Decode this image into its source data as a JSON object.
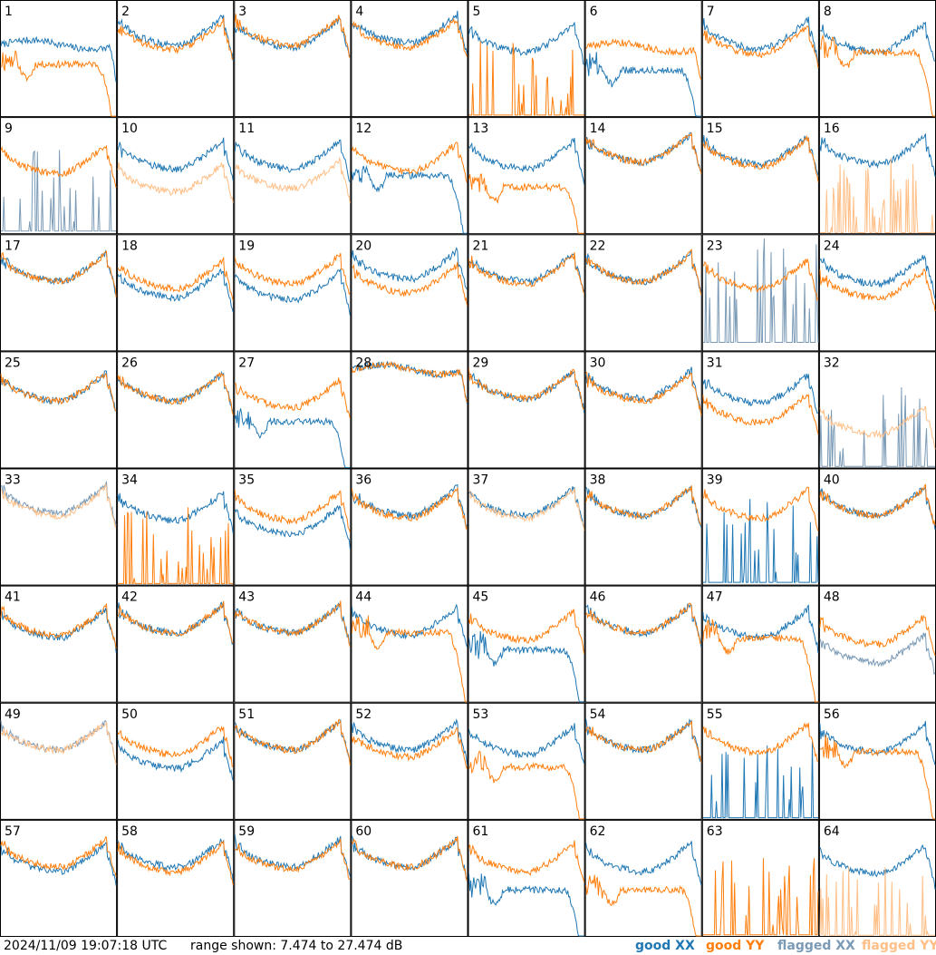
{
  "footer": {
    "timestamp": "2024/11/09 19:07:18 UTC",
    "range_label": "range shown: 7.474 to 27.474 dB"
  },
  "chart_data": {
    "type": "line",
    "layout": "small-multiples-8x8",
    "unit": "dB",
    "ylim": [
      7.474,
      27.474
    ],
    "panels": [
      {
        "label": "1",
        "xx": "good",
        "yy": "good",
        "xx_shape": "flat",
        "yy_shape": "decay",
        "xx_level": 0.62,
        "yy_level": 0.45
      },
      {
        "label": "2",
        "xx": "good",
        "yy": "good",
        "xx_shape": "bowl",
        "yy_shape": "bowl",
        "xx_level": 0.78,
        "yy_level": 0.74
      },
      {
        "label": "3",
        "xx": "good",
        "yy": "good",
        "xx_shape": "bowl",
        "yy_shape": "bowl",
        "xx_level": 0.76,
        "yy_level": 0.78
      },
      {
        "label": "4",
        "xx": "good",
        "yy": "good",
        "xx_shape": "bowl",
        "yy_shape": "bowl",
        "xx_level": 0.8,
        "yy_level": 0.76
      },
      {
        "label": "5",
        "xx": "good",
        "yy": "good",
        "xx_shape": "bowl",
        "yy_shape": "spikes",
        "xx_level": 0.72,
        "yy_level": 0.05
      },
      {
        "label": "6",
        "xx": "good",
        "yy": "good",
        "xx_shape": "decay",
        "yy_shape": "flat",
        "xx_level": 0.4,
        "yy_level": 0.6
      },
      {
        "label": "7",
        "xx": "good",
        "yy": "good",
        "xx_shape": "bowl",
        "yy_shape": "bowl",
        "xx_level": 0.75,
        "yy_level": 0.7
      },
      {
        "label": "8",
        "xx": "good",
        "yy": "good",
        "xx_shape": "bowl",
        "yy_shape": "decay",
        "xx_level": 0.72,
        "yy_level": 0.55
      },
      {
        "label": "9",
        "xx": "flagged",
        "yy": "good",
        "xx_shape": "spikes",
        "yy_shape": "bowl",
        "xx_level": 0.1,
        "yy_level": 0.68
      },
      {
        "label": "10",
        "xx": "good",
        "yy": "flagged",
        "xx_shape": "bowl",
        "yy_shape": "bowl",
        "xx_level": 0.72,
        "yy_level": 0.52
      },
      {
        "label": "11",
        "xx": "good",
        "yy": "flagged",
        "xx_shape": "bowl",
        "yy_shape": "bowl",
        "xx_level": 0.72,
        "yy_level": 0.55
      },
      {
        "label": "12",
        "xx": "good",
        "yy": "good",
        "xx_shape": "decay",
        "yy_shape": "bowl",
        "xx_level": 0.5,
        "yy_level": 0.7
      },
      {
        "label": "13",
        "xx": "good",
        "yy": "good",
        "xx_shape": "bowl",
        "yy_shape": "decay",
        "xx_level": 0.72,
        "yy_level": 0.4
      },
      {
        "label": "14",
        "xx": "good",
        "yy": "good",
        "xx_shape": "bowl",
        "yy_shape": "bowl",
        "xx_level": 0.78,
        "yy_level": 0.78
      },
      {
        "label": "15",
        "xx": "good",
        "yy": "good",
        "xx_shape": "bowl",
        "yy_shape": "bowl",
        "xx_level": 0.76,
        "yy_level": 0.74
      },
      {
        "label": "16",
        "xx": "good",
        "yy": "flagged",
        "xx_shape": "bowl",
        "yy_shape": "spikes",
        "xx_level": 0.76,
        "yy_level": 0.03
      },
      {
        "label": "17",
        "xx": "good",
        "yy": "good",
        "xx_shape": "bowl",
        "yy_shape": "bowl",
        "xx_level": 0.76,
        "yy_level": 0.76
      },
      {
        "label": "18",
        "xx": "good",
        "yy": "good",
        "xx_shape": "bowl",
        "yy_shape": "bowl",
        "xx_level": 0.62,
        "yy_level": 0.7
      },
      {
        "label": "19",
        "xx": "good",
        "yy": "good",
        "xx_shape": "bowl",
        "yy_shape": "bowl",
        "xx_level": 0.6,
        "yy_level": 0.74
      },
      {
        "label": "20",
        "xx": "good",
        "yy": "good",
        "xx_shape": "bowl",
        "yy_shape": "bowl",
        "xx_level": 0.78,
        "yy_level": 0.66
      },
      {
        "label": "21",
        "xx": "good",
        "yy": "good",
        "xx_shape": "bowl",
        "yy_shape": "bowl",
        "xx_level": 0.76,
        "yy_level": 0.74
      },
      {
        "label": "22",
        "xx": "good",
        "yy": "good",
        "xx_shape": "bowl",
        "yy_shape": "bowl",
        "xx_level": 0.76,
        "yy_level": 0.76
      },
      {
        "label": "23",
        "xx": "flagged",
        "yy": "good",
        "xx_shape": "spikes",
        "yy_shape": "bowl",
        "xx_level": 0.35,
        "yy_level": 0.7
      },
      {
        "label": "24",
        "xx": "good",
        "yy": "good",
        "xx_shape": "bowl",
        "yy_shape": "bowl",
        "xx_level": 0.74,
        "yy_level": 0.62
      },
      {
        "label": "25",
        "xx": "good",
        "yy": "good",
        "xx_shape": "bowl",
        "yy_shape": "bowl",
        "xx_level": 0.74,
        "yy_level": 0.74
      },
      {
        "label": "26",
        "xx": "good",
        "yy": "good",
        "xx_shape": "bowl",
        "yy_shape": "bowl",
        "xx_level": 0.74,
        "yy_level": 0.74
      },
      {
        "label": "27",
        "xx": "good",
        "yy": "good",
        "xx_shape": "decay",
        "yy_shape": "bowl",
        "xx_level": 0.4,
        "yy_level": 0.68
      },
      {
        "label": "28",
        "xx": "good",
        "yy": "good",
        "xx_shape": "flat",
        "yy_shape": "flat",
        "xx_level": 0.85,
        "yy_level": 0.85
      },
      {
        "label": "29",
        "xx": "good",
        "yy": "good",
        "xx_shape": "bowl",
        "yy_shape": "bowl",
        "xx_level": 0.76,
        "yy_level": 0.76
      },
      {
        "label": "30",
        "xx": "good",
        "yy": "good",
        "xx_shape": "bowl",
        "yy_shape": "bowl",
        "xx_level": 0.76,
        "yy_level": 0.74
      },
      {
        "label": "31",
        "xx": "good",
        "yy": "good",
        "xx_shape": "bowl",
        "yy_shape": "bowl",
        "xx_level": 0.72,
        "yy_level": 0.55
      },
      {
        "label": "32",
        "xx": "flagged",
        "yy": "flagged",
        "xx_shape": "spikes",
        "yy_shape": "bowl",
        "xx_level": 0.05,
        "yy_level": 0.45
      },
      {
        "label": "33",
        "xx": "flagged",
        "yy": "flagged",
        "xx_shape": "bowl",
        "yy_shape": "bowl",
        "xx_level": 0.78,
        "yy_level": 0.76
      },
      {
        "label": "34",
        "xx": "good",
        "yy": "good",
        "xx_shape": "bowl",
        "yy_shape": "spikes",
        "xx_level": 0.72,
        "yy_level": 0.05
      },
      {
        "label": "35",
        "xx": "good",
        "yy": "good",
        "xx_shape": "bowl",
        "yy_shape": "bowl",
        "xx_level": 0.6,
        "yy_level": 0.72
      },
      {
        "label": "36",
        "xx": "good",
        "yy": "good",
        "xx_shape": "bowl",
        "yy_shape": "bowl",
        "xx_level": 0.76,
        "yy_level": 0.74
      },
      {
        "label": "37",
        "xx": "good",
        "yy": "flagged",
        "xx_shape": "bowl",
        "yy_shape": "bowl",
        "xx_level": 0.76,
        "yy_level": 0.74
      },
      {
        "label": "38",
        "xx": "good",
        "yy": "good",
        "xx_shape": "bowl",
        "yy_shape": "bowl",
        "xx_level": 0.76,
        "yy_level": 0.76
      },
      {
        "label": "39",
        "xx": "good",
        "yy": "good",
        "xx_shape": "spikes",
        "yy_shape": "bowl",
        "xx_level": 0.1,
        "yy_level": 0.74
      },
      {
        "label": "40",
        "xx": "good",
        "yy": "good",
        "xx_shape": "bowl",
        "yy_shape": "bowl",
        "xx_level": 0.76,
        "yy_level": 0.76
      },
      {
        "label": "41",
        "xx": "good",
        "yy": "good",
        "xx_shape": "bowl",
        "yy_shape": "bowl",
        "xx_level": 0.72,
        "yy_level": 0.74
      },
      {
        "label": "42",
        "xx": "good",
        "yy": "good",
        "xx_shape": "bowl",
        "yy_shape": "bowl",
        "xx_level": 0.76,
        "yy_level": 0.76
      },
      {
        "label": "43",
        "xx": "good",
        "yy": "good",
        "xx_shape": "bowl",
        "yy_shape": "bowl",
        "xx_level": 0.76,
        "yy_level": 0.76
      },
      {
        "label": "44",
        "xx": "good",
        "yy": "good",
        "xx_shape": "bowl",
        "yy_shape": "decay",
        "xx_level": 0.74,
        "yy_level": 0.6
      },
      {
        "label": "45",
        "xx": "good",
        "yy": "good",
        "xx_shape": "decay",
        "yy_shape": "bowl",
        "xx_level": 0.45,
        "yy_level": 0.7
      },
      {
        "label": "46",
        "xx": "good",
        "yy": "good",
        "xx_shape": "bowl",
        "yy_shape": "bowl",
        "xx_level": 0.76,
        "yy_level": 0.76
      },
      {
        "label": "47",
        "xx": "good",
        "yy": "good",
        "xx_shape": "bowl",
        "yy_shape": "decay",
        "xx_level": 0.72,
        "yy_level": 0.55
      },
      {
        "label": "48",
        "xx": "flagged",
        "yy": "good",
        "xx_shape": "bowl",
        "yy_shape": "bowl",
        "xx_level": 0.5,
        "yy_level": 0.66
      },
      {
        "label": "49",
        "xx": "flagged",
        "yy": "flagged",
        "xx_shape": "bowl",
        "yy_shape": "bowl",
        "xx_level": 0.76,
        "yy_level": 0.76
      },
      {
        "label": "50",
        "xx": "good",
        "yy": "good",
        "xx_shape": "bowl",
        "yy_shape": "bowl",
        "xx_level": 0.6,
        "yy_level": 0.72
      },
      {
        "label": "51",
        "xx": "good",
        "yy": "good",
        "xx_shape": "bowl",
        "yy_shape": "bowl",
        "xx_level": 0.76,
        "yy_level": 0.76
      },
      {
        "label": "52",
        "xx": "good",
        "yy": "good",
        "xx_shape": "bowl",
        "yy_shape": "bowl",
        "xx_level": 0.76,
        "yy_level": 0.7
      },
      {
        "label": "53",
        "xx": "good",
        "yy": "good",
        "xx_shape": "bowl",
        "yy_shape": "decay",
        "xx_level": 0.72,
        "yy_level": 0.45
      },
      {
        "label": "54",
        "xx": "good",
        "yy": "good",
        "xx_shape": "bowl",
        "yy_shape": "bowl",
        "xx_level": 0.76,
        "yy_level": 0.76
      },
      {
        "label": "55",
        "xx": "good",
        "yy": "good",
        "xx_shape": "spikes",
        "yy_shape": "bowl",
        "xx_level": 0.05,
        "yy_level": 0.74
      },
      {
        "label": "56",
        "xx": "good",
        "yy": "good",
        "xx_shape": "bowl",
        "yy_shape": "decay",
        "xx_level": 0.74,
        "yy_level": 0.58
      },
      {
        "label": "57",
        "xx": "good",
        "yy": "good",
        "xx_shape": "bowl",
        "yy_shape": "bowl",
        "xx_level": 0.72,
        "yy_level": 0.76
      },
      {
        "label": "58",
        "xx": "good",
        "yy": "good",
        "xx_shape": "bowl",
        "yy_shape": "bowl",
        "xx_level": 0.76,
        "yy_level": 0.72
      },
      {
        "label": "59",
        "xx": "good",
        "yy": "good",
        "xx_shape": "bowl",
        "yy_shape": "bowl",
        "xx_level": 0.76,
        "yy_level": 0.74
      },
      {
        "label": "60",
        "xx": "good",
        "yy": "good",
        "xx_shape": "bowl",
        "yy_shape": "bowl",
        "xx_level": 0.76,
        "yy_level": 0.76
      },
      {
        "label": "61",
        "xx": "good",
        "yy": "good",
        "xx_shape": "decay",
        "yy_shape": "bowl",
        "xx_level": 0.4,
        "yy_level": 0.72
      },
      {
        "label": "62",
        "xx": "good",
        "yy": "good",
        "xx_shape": "bowl",
        "yy_shape": "decay",
        "xx_level": 0.72,
        "yy_level": 0.4
      },
      {
        "label": "63",
        "xx": "good",
        "yy": "good",
        "xx_shape": "none",
        "yy_shape": "spikes",
        "xx_level": 0.0,
        "yy_level": 0.05
      },
      {
        "label": "64",
        "xx": "good",
        "yy": "flagged",
        "xx_shape": "bowl",
        "yy_shape": "spikes",
        "xx_level": 0.7,
        "yy_level": 0.03
      }
    ],
    "legend": [
      {
        "name": "good XX",
        "color": "#1f77b4"
      },
      {
        "name": "good YY",
        "color": "#ff7f0e"
      },
      {
        "name": "flagged XX",
        "color": "#7a9ab6"
      },
      {
        "name": "flagged YY",
        "color": "#ffbf87"
      }
    ]
  }
}
